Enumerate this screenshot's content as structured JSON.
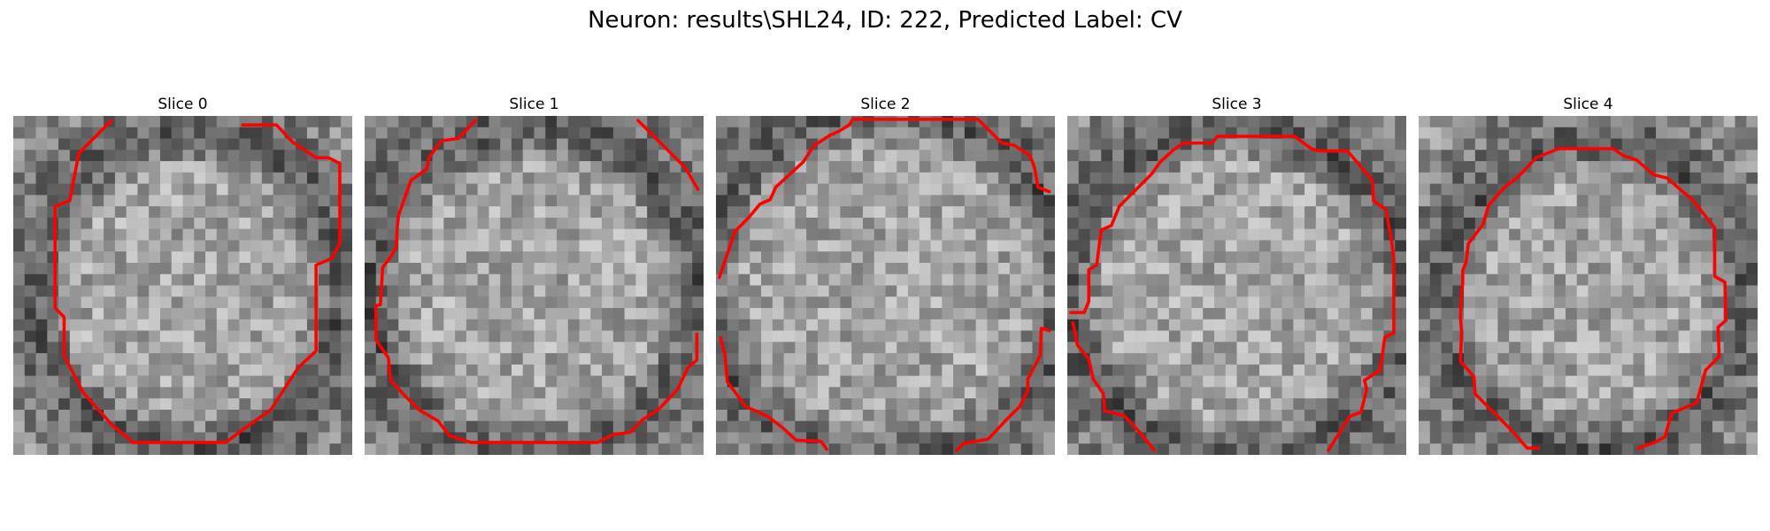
{
  "figure": {
    "title": "Neuron: results\\SHL24, ID: 222, Predicted Label: CV",
    "contour_color": "#ff0000"
  },
  "panels": [
    {
      "title": "Slice 0"
    },
    {
      "title": "Slice 1"
    },
    {
      "title": "Slice 2"
    },
    {
      "title": "Slice 3"
    },
    {
      "title": "Slice 4"
    }
  ]
}
